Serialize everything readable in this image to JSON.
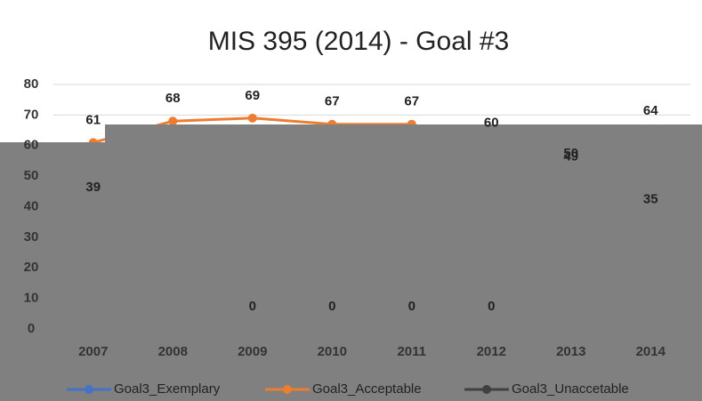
{
  "chart_data": {
    "type": "line",
    "title": "MIS 395 (2014) - Goal #3",
    "categories": [
      "2007",
      "2008",
      "2009",
      "2010",
      "2011",
      "2012",
      "2013",
      "2014"
    ],
    "series": [
      {
        "name": "Goal3_Exemplary",
        "color": "#4472c4",
        "values": [
          39,
          null,
          null,
          null,
          null,
          null,
          49,
          35
        ]
      },
      {
        "name": "Goal3_Acceptable",
        "color": "#ed7d31",
        "values": [
          61,
          68,
          69,
          67,
          67,
          60,
          50,
          64
        ]
      },
      {
        "name": "Goal3_Unaccetable",
        "color": "#404040",
        "values": [
          null,
          null,
          0,
          0,
          0,
          0,
          null,
          null
        ]
      }
    ],
    "ylim": [
      0,
      80
    ],
    "yticks": [
      0,
      10,
      20,
      30,
      40,
      50,
      60,
      70,
      80
    ],
    "grid": true,
    "legend": "bottom"
  }
}
